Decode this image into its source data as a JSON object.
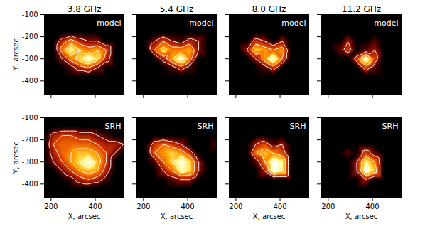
{
  "chart_data": [
    {
      "type": "heatmap",
      "title": "3.8 GHz",
      "label": "model",
      "ylabel": "Y, arcsec",
      "tick_labels": "y",
      "xlim": [
        170,
        530
      ],
      "ylim": [
        -460,
        -100
      ],
      "xticks": [
        200,
        400
      ],
      "yticks": [
        -100,
        -200,
        -300,
        -400
      ],
      "x": [
        170,
        210,
        250,
        290,
        330,
        370,
        410,
        450,
        490,
        530
      ],
      "y": [
        -100,
        -140,
        -180,
        -220,
        -260,
        -300,
        -340,
        -380,
        -420,
        -460
      ],
      "levels": [
        0.2,
        0.4,
        0.6,
        0.8
      ],
      "cells": [
        [
          0,
          0,
          0,
          0,
          0,
          0,
          0,
          0,
          0,
          0
        ],
        [
          0,
          0,
          0,
          0,
          0,
          0,
          0,
          0,
          0,
          0
        ],
        [
          0,
          0,
          0,
          0,
          0,
          0,
          0,
          0,
          0,
          0
        ],
        [
          0,
          0,
          0.3,
          0.5,
          0.3,
          0.2,
          0.2,
          0,
          0,
          0
        ],
        [
          0,
          0,
          0.5,
          0.8,
          0.6,
          0.5,
          0.6,
          0.4,
          0,
          0
        ],
        [
          0,
          0,
          0.2,
          0.5,
          0.7,
          0.9,
          0.7,
          0.3,
          0,
          0
        ],
        [
          0,
          0,
          0,
          0.1,
          0.3,
          0.4,
          0.2,
          0,
          0,
          0
        ],
        [
          0,
          0,
          0,
          0,
          0,
          0,
          0,
          0,
          0,
          0
        ],
        [
          0,
          0,
          0,
          0,
          0,
          0,
          0,
          0,
          0,
          0
        ],
        [
          0,
          0,
          0,
          0,
          0,
          0,
          0,
          0,
          0,
          0
        ]
      ]
    },
    {
      "type": "heatmap",
      "title": "5.4 GHz",
      "label": "model",
      "tick_labels": false,
      "xlim": [
        170,
        530
      ],
      "ylim": [
        -460,
        -100
      ],
      "xticks": [
        200,
        400
      ],
      "yticks": [
        -100,
        -200,
        -300,
        -400
      ],
      "x": [
        170,
        210,
        250,
        290,
        330,
        370,
        410,
        450,
        490,
        530
      ],
      "y": [
        -100,
        -140,
        -180,
        -220,
        -260,
        -300,
        -340,
        -380,
        -420,
        -460
      ],
      "levels": [
        0.2,
        0.4,
        0.6,
        0.8
      ],
      "cells": [
        [
          0,
          0,
          0,
          0,
          0,
          0,
          0,
          0,
          0,
          0
        ],
        [
          0,
          0,
          0,
          0,
          0,
          0,
          0,
          0,
          0,
          0
        ],
        [
          0,
          0,
          0,
          0,
          0,
          0,
          0,
          0,
          0,
          0
        ],
        [
          0,
          0,
          0.2,
          0.4,
          0.2,
          0.1,
          0.3,
          0.2,
          0,
          0
        ],
        [
          0,
          0,
          0.4,
          0.7,
          0.5,
          0.5,
          0.6,
          0.2,
          0,
          0
        ],
        [
          0,
          0,
          0,
          0.3,
          0.6,
          0.9,
          0.5,
          0,
          0,
          0
        ],
        [
          0,
          0,
          0,
          0,
          0.1,
          0.3,
          0.1,
          0,
          0,
          0
        ],
        [
          0,
          0,
          0,
          0,
          0,
          0,
          0,
          0,
          0,
          0
        ],
        [
          0,
          0,
          0,
          0,
          0,
          0,
          0,
          0,
          0,
          0
        ],
        [
          0,
          0,
          0,
          0,
          0,
          0,
          0,
          0,
          0,
          0
        ]
      ]
    },
    {
      "type": "heatmap",
      "title": "8.0 GHz",
      "label": "model",
      "tick_labels": false,
      "xlim": [
        170,
        530
      ],
      "ylim": [
        -460,
        -100
      ],
      "xticks": [
        200,
        400
      ],
      "yticks": [
        -100,
        -200,
        -300,
        -400
      ],
      "x": [
        170,
        210,
        250,
        290,
        330,
        370,
        410,
        450,
        490,
        530
      ],
      "y": [
        -100,
        -140,
        -180,
        -220,
        -260,
        -300,
        -340,
        -380,
        -420,
        -460
      ],
      "levels": [
        0.2,
        0.4,
        0.6,
        0.8
      ],
      "cells": [
        [
          0,
          0,
          0,
          0,
          0,
          0,
          0,
          0,
          0,
          0
        ],
        [
          0,
          0,
          0,
          0,
          0,
          0,
          0,
          0,
          0,
          0
        ],
        [
          0,
          0,
          0,
          0,
          0,
          0,
          0,
          0,
          0,
          0
        ],
        [
          0,
          0,
          0,
          0.3,
          0.2,
          0,
          0.2,
          0,
          0,
          0
        ],
        [
          0,
          0,
          0.2,
          0.6,
          0.5,
          0.4,
          0.5,
          0,
          0,
          0
        ],
        [
          0,
          0,
          0,
          0.2,
          0.5,
          0.8,
          0.4,
          0,
          0,
          0
        ],
        [
          0,
          0,
          0,
          0,
          0.1,
          0.3,
          0,
          0,
          0,
          0
        ],
        [
          0,
          0,
          0,
          0,
          0,
          0,
          0,
          0,
          0,
          0
        ],
        [
          0,
          0,
          0,
          0,
          0,
          0,
          0,
          0,
          0,
          0
        ],
        [
          0,
          0,
          0,
          0,
          0,
          0,
          0,
          0,
          0,
          0
        ]
      ]
    },
    {
      "type": "heatmap",
      "title": "11.2 GHz",
      "label": "model",
      "tick_labels": false,
      "xlim": [
        170,
        530
      ],
      "ylim": [
        -460,
        -100
      ],
      "xticks": [
        200,
        400
      ],
      "yticks": [
        -100,
        -200,
        -300,
        -400
      ],
      "x": [
        170,
        210,
        250,
        290,
        330,
        370,
        410,
        450,
        490,
        530
      ],
      "y": [
        -100,
        -140,
        -180,
        -220,
        -260,
        -300,
        -340,
        -380,
        -420,
        -460
      ],
      "levels": [
        0.2,
        0.4,
        0.6,
        0.8
      ],
      "cells": [
        [
          0,
          0,
          0,
          0,
          0,
          0,
          0,
          0,
          0,
          0
        ],
        [
          0,
          0,
          0,
          0,
          0,
          0,
          0,
          0,
          0,
          0
        ],
        [
          0,
          0,
          0,
          0,
          0,
          0,
          0,
          0,
          0,
          0
        ],
        [
          0,
          0,
          0,
          0.2,
          0,
          0,
          0.1,
          0,
          0,
          0
        ],
        [
          0,
          0,
          0.1,
          0.3,
          0,
          0.1,
          0.2,
          0,
          0,
          0
        ],
        [
          0,
          0,
          0,
          0,
          0.3,
          0.7,
          0.3,
          0,
          0,
          0
        ],
        [
          0,
          0,
          0,
          0,
          0,
          0.3,
          0.1,
          0,
          0,
          0
        ],
        [
          0,
          0,
          0,
          0,
          0,
          0,
          0,
          0,
          0,
          0
        ],
        [
          0,
          0,
          0,
          0,
          0,
          0,
          0,
          0,
          0,
          0
        ],
        [
          0,
          0,
          0,
          0,
          0,
          0,
          0,
          0,
          0,
          0
        ]
      ]
    },
    {
      "type": "heatmap",
      "label": "SRH",
      "xlabel": "X, arcsec",
      "ylabel": "Y, arcsec",
      "tick_labels": true,
      "xlim": [
        170,
        530
      ],
      "ylim": [
        -460,
        -100
      ],
      "xticks": [
        200,
        400
      ],
      "yticks": [
        -100,
        -200,
        -300,
        -400
      ],
      "x": [
        170,
        210,
        250,
        290,
        330,
        370,
        410,
        450,
        490,
        530
      ],
      "y": [
        -100,
        -140,
        -180,
        -220,
        -260,
        -300,
        -340,
        -380,
        -420,
        -460
      ],
      "levels": [
        0.2,
        0.4,
        0.6,
        0.8
      ],
      "cells": [
        [
          0,
          0,
          0,
          0,
          0,
          0,
          0,
          0,
          0,
          0
        ],
        [
          0,
          0,
          0,
          0,
          0,
          0,
          0,
          0,
          0,
          0
        ],
        [
          0,
          0.3,
          0.4,
          0.4,
          0.3,
          0.3,
          0.2,
          0.1,
          0,
          0
        ],
        [
          0,
          0.4,
          0.5,
          0.5,
          0.5,
          0.5,
          0.4,
          0.3,
          0.3,
          0.2
        ],
        [
          0,
          0.3,
          0.5,
          0.6,
          0.7,
          0.7,
          0.6,
          0.4,
          0.2,
          0
        ],
        [
          0,
          0.2,
          0.4,
          0.6,
          0.8,
          1.0,
          0.7,
          0.4,
          0,
          0
        ],
        [
          0,
          0,
          0.2,
          0.4,
          0.6,
          0.7,
          0.6,
          0.3,
          0,
          0
        ],
        [
          0,
          0,
          0,
          0.1,
          0.3,
          0.4,
          0.3,
          0.1,
          0,
          0
        ],
        [
          0,
          0,
          0,
          0,
          0,
          0,
          0,
          0,
          0,
          0
        ],
        [
          0,
          0,
          0,
          0,
          0,
          0,
          0,
          0,
          0,
          0
        ]
      ]
    },
    {
      "type": "heatmap",
      "label": "SRH",
      "xlabel": "X, arcsec",
      "tick_labels": "x",
      "xlim": [
        170,
        530
      ],
      "ylim": [
        -460,
        -100
      ],
      "xticks": [
        200,
        400
      ],
      "yticks": [
        -100,
        -200,
        -300,
        -400
      ],
      "x": [
        170,
        210,
        250,
        290,
        330,
        370,
        410,
        450,
        490,
        530
      ],
      "y": [
        -100,
        -140,
        -180,
        -220,
        -260,
        -300,
        -340,
        -380,
        -420,
        -460
      ],
      "levels": [
        0.2,
        0.4,
        0.6,
        0.8
      ],
      "cells": [
        [
          0,
          0,
          0,
          0,
          0,
          0,
          0,
          0,
          0,
          0
        ],
        [
          0,
          0,
          0,
          0,
          0,
          0,
          0,
          0,
          0,
          0
        ],
        [
          0,
          0,
          0,
          0,
          0,
          0,
          0,
          0,
          0,
          0
        ],
        [
          0,
          0,
          0.3,
          0.4,
          0.3,
          0.2,
          0,
          0,
          0,
          0.1
        ],
        [
          0,
          0,
          0.4,
          0.5,
          0.6,
          0.5,
          0.3,
          0,
          0,
          0
        ],
        [
          0,
          0,
          0.1,
          0.4,
          0.6,
          0.8,
          0.6,
          0.2,
          0,
          0
        ],
        [
          0,
          0,
          0,
          0.2,
          0.4,
          0.7,
          0.6,
          0.2,
          0,
          0
        ],
        [
          0,
          0,
          0,
          0,
          0.1,
          0.2,
          0.2,
          0,
          0,
          0
        ],
        [
          0,
          0,
          0,
          0,
          0,
          0,
          0,
          0,
          0,
          0
        ],
        [
          0,
          0,
          0,
          0,
          0,
          0,
          0,
          0,
          0,
          0
        ]
      ]
    },
    {
      "type": "heatmap",
      "label": "SRH",
      "xlabel": "X, arcsec",
      "tick_labels": "x",
      "xlim": [
        170,
        530
      ],
      "ylim": [
        -460,
        -100
      ],
      "xticks": [
        200,
        400
      ],
      "yticks": [
        -100,
        -200,
        -300,
        -400
      ],
      "x": [
        170,
        210,
        250,
        290,
        330,
        370,
        410,
        450,
        490,
        530
      ],
      "y": [
        -100,
        -140,
        -180,
        -220,
        -260,
        -300,
        -340,
        -380,
        -420,
        -460
      ],
      "levels": [
        0.2,
        0.4,
        0.6,
        0.8
      ],
      "cells": [
        [
          0,
          0,
          0,
          0,
          0,
          0,
          0,
          0,
          0,
          0
        ],
        [
          0,
          0,
          0,
          0,
          0,
          0,
          0,
          0,
          0,
          0
        ],
        [
          0,
          0,
          0,
          0,
          0,
          0,
          0,
          0,
          0,
          0
        ],
        [
          0,
          0,
          0,
          0.2,
          0.3,
          0.1,
          0.2,
          0,
          0,
          0
        ],
        [
          0,
          0,
          0,
          0.4,
          0.5,
          0.4,
          0.3,
          0,
          0,
          0
        ],
        [
          0,
          0,
          0,
          0.1,
          0.4,
          0.7,
          0.6,
          0,
          0,
          0
        ],
        [
          0,
          0,
          0,
          0,
          0.2,
          0.7,
          0.6,
          0,
          0,
          0
        ],
        [
          0,
          0,
          0,
          0,
          0,
          0,
          0,
          0,
          0,
          0
        ],
        [
          0,
          0,
          0,
          0,
          0,
          0,
          0,
          0,
          0,
          0
        ],
        [
          0,
          0,
          0,
          0,
          0,
          0,
          0,
          0,
          0,
          0
        ]
      ]
    },
    {
      "type": "heatmap",
      "label": "SRH",
      "xlabel": "X, arcsec",
      "tick_labels": "x",
      "xlim": [
        170,
        530
      ],
      "ylim": [
        -460,
        -100
      ],
      "xticks": [
        200,
        400
      ],
      "yticks": [
        -100,
        -200,
        -300,
        -400
      ],
      "x": [
        170,
        210,
        250,
        290,
        330,
        370,
        410,
        450,
        490,
        530
      ],
      "y": [
        -100,
        -140,
        -180,
        -220,
        -260,
        -300,
        -340,
        -380,
        -420,
        -460
      ],
      "levels": [
        0.2,
        0.4,
        0.6,
        0.8
      ],
      "cells": [
        [
          0,
          0,
          0,
          0,
          0,
          0,
          0,
          0,
          0,
          0
        ],
        [
          0,
          0,
          0,
          0,
          0,
          0,
          0,
          0,
          0,
          0
        ],
        [
          0,
          0,
          0,
          0,
          0,
          0,
          0,
          0,
          0,
          0
        ],
        [
          0,
          0,
          0,
          0,
          0,
          0,
          0,
          0,
          0,
          0
        ],
        [
          0,
          0,
          0,
          0.1,
          0,
          0.3,
          0.1,
          0,
          0,
          0
        ],
        [
          0,
          0,
          0,
          0,
          0.2,
          0.6,
          0.4,
          0,
          0,
          0
        ],
        [
          0,
          0,
          0,
          0,
          0.2,
          0.7,
          0.5,
          0,
          0,
          0
        ],
        [
          0,
          0,
          0,
          0,
          0,
          0.2,
          0,
          0,
          0,
          0
        ],
        [
          0,
          0,
          0,
          0,
          0,
          0,
          0,
          0,
          0,
          0
        ],
        [
          0,
          0,
          0,
          0,
          0,
          0,
          0,
          0,
          0,
          0
        ]
      ]
    }
  ]
}
